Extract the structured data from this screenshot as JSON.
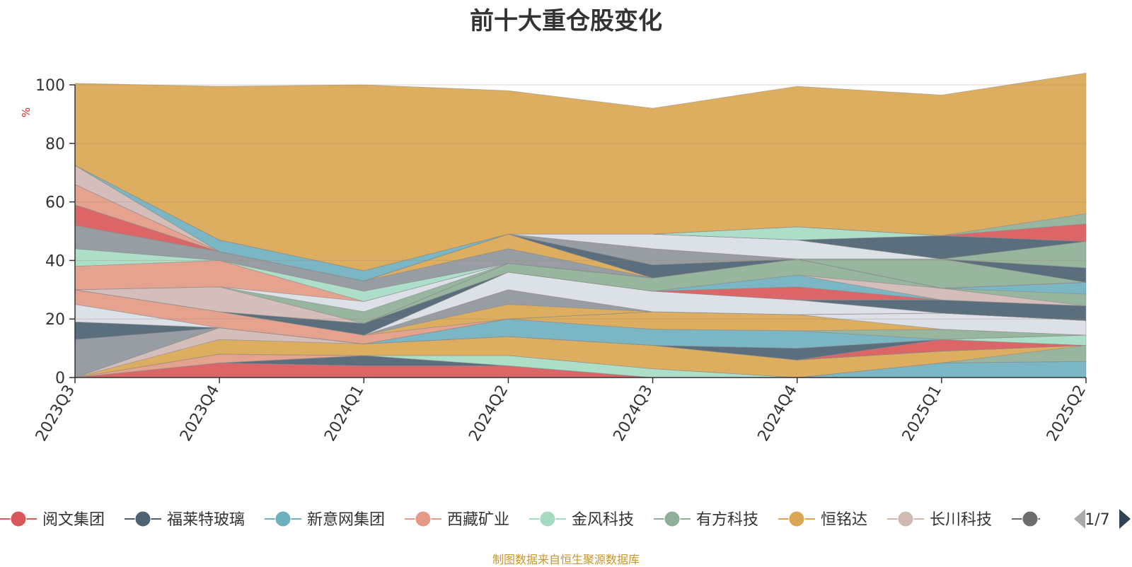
{
  "chart_data": {
    "type": "area",
    "stacked": true,
    "title": "前十大重仓股变化",
    "ylabel": "%",
    "ylim": [
      0,
      100
    ],
    "yticks": [
      0,
      20,
      40,
      60,
      80,
      100
    ],
    "categories": [
      "2023Q3",
      "2023Q4",
      "2024Q1",
      "2024Q2",
      "2024Q3",
      "2024Q4",
      "2025Q1",
      "2025Q2"
    ],
    "series": [
      {
        "name": "阅文集团",
        "color": "#d9595a",
        "values": [
          0,
          5,
          4,
          4,
          0,
          0,
          0,
          0
        ]
      },
      {
        "name": "福莱特玻璃",
        "color": "#4d6272",
        "values": [
          0,
          0,
          3.5,
          0,
          0,
          0,
          0,
          0
        ]
      },
      {
        "name": "新意网集团",
        "color": "#6fb0be",
        "values": [
          0,
          0,
          0,
          0,
          0,
          0,
          5,
          5.5
        ]
      },
      {
        "name": "西藏矿业",
        "color": "#e39a86",
        "values": [
          0,
          3,
          0,
          0,
          0,
          0,
          0,
          0
        ]
      },
      {
        "name": "金风科技",
        "color": "#a6dbc3",
        "values": [
          0,
          0,
          0,
          3.5,
          3,
          0,
          0,
          0
        ]
      },
      {
        "name": "有方科技",
        "color": "#8fb096",
        "values": [
          0,
          0,
          0,
          0,
          0,
          0,
          0,
          5.5
        ]
      },
      {
        "name": "恒铭达",
        "color": "#dba753",
        "values": [
          0,
          5,
          4,
          6.5,
          8,
          6,
          4,
          0
        ]
      },
      {
        "name": "长川科技",
        "color": "#d1b9b3",
        "values": [
          0,
          4,
          0,
          0,
          0,
          0,
          0,
          0
        ]
      },
      {
        "name": "",
        "color": "#8e959b",
        "values": [
          13,
          0,
          0,
          0,
          0,
          0,
          0,
          0
        ]
      },
      {
        "name": "",
        "color": "#d9595a",
        "values": [
          0,
          0,
          0,
          0,
          0,
          0,
          4,
          0
        ]
      },
      {
        "name": "",
        "color": "#4d6272",
        "values": [
          6,
          0,
          0,
          0,
          0,
          4,
          0,
          0
        ]
      },
      {
        "name": "",
        "color": "#a6dbc3",
        "values": [
          0,
          0,
          0,
          0,
          0,
          0,
          0,
          3.5
        ]
      },
      {
        "name": "",
        "color": "#6fb0be",
        "values": [
          0,
          0,
          0,
          6,
          5.5,
          6,
          0,
          0
        ]
      },
      {
        "name": "",
        "color": "#8fb096",
        "values": [
          0,
          0,
          0,
          0,
          0,
          0,
          3.5,
          0
        ]
      },
      {
        "name": "",
        "color": "#dba753",
        "values": [
          0,
          0,
          0,
          0,
          6,
          5.5,
          0,
          0
        ]
      },
      {
        "name": "",
        "color": "#d9dee6",
        "values": [
          6,
          0,
          0,
          0,
          0,
          0,
          5.5,
          5
        ]
      },
      {
        "name": "",
        "color": "#e39a86",
        "values": [
          5,
          5.5,
          3,
          0,
          0,
          0,
          0,
          0
        ]
      },
      {
        "name": "",
        "color": "#d1b9b3",
        "values": [
          0,
          0,
          0,
          0,
          0,
          0,
          0,
          0
        ]
      },
      {
        "name": "",
        "color": "#dba753",
        "values": [
          0,
          0,
          0,
          5,
          0,
          0,
          0,
          0
        ]
      },
      {
        "name": "",
        "color": "#8e959b",
        "values": [
          0,
          0,
          0,
          5,
          0,
          0,
          0,
          0
        ]
      },
      {
        "name": "",
        "color": "#d9dee6",
        "values": [
          0,
          0,
          0,
          6,
          7,
          5,
          0,
          0
        ]
      },
      {
        "name": "",
        "color": "#4d6272",
        "values": [
          0,
          0,
          4,
          0,
          0,
          0,
          4.5,
          5
        ]
      },
      {
        "name": "",
        "color": "#d9595a",
        "values": [
          0,
          0,
          0,
          0,
          0,
          4.5,
          0,
          0
        ]
      },
      {
        "name": "",
        "color": "#6fb0be",
        "values": [
          0,
          0,
          0,
          0,
          0,
          4,
          0,
          0
        ]
      },
      {
        "name": "",
        "color": "#d1b9b3",
        "values": [
          0,
          0,
          0,
          0,
          0,
          0,
          4,
          0
        ]
      },
      {
        "name": "",
        "color": "#8fb096",
        "values": [
          0,
          0,
          0,
          3,
          4.5,
          5.5,
          0,
          4
        ]
      },
      {
        "name": "",
        "color": "#6fb0be",
        "values": [
          0,
          0,
          0,
          0,
          0,
          0,
          0,
          4
        ]
      },
      {
        "name": "",
        "color": "#d1b9b3",
        "values": [
          0,
          8.5,
          0,
          0,
          0,
          0,
          0,
          0
        ]
      },
      {
        "name": "",
        "color": "#8fb096",
        "values": [
          0,
          0,
          4,
          0,
          0,
          0,
          0,
          0
        ]
      },
      {
        "name": "",
        "color": "#d9dee6",
        "values": [
          0,
          0,
          3.5,
          0,
          0,
          0,
          0,
          0
        ]
      },
      {
        "name": "",
        "color": "#e39a86",
        "values": [
          8,
          9,
          0,
          0,
          0,
          0,
          0,
          0
        ]
      },
      {
        "name": "",
        "color": "#a6dbc3",
        "values": [
          6,
          0,
          3.5,
          0,
          0,
          0,
          0,
          0
        ]
      },
      {
        "name": "",
        "color": "#8e959b",
        "values": [
          8,
          3,
          3.5,
          5,
          0,
          0,
          0,
          0
        ]
      },
      {
        "name": "",
        "color": "#d9595a",
        "values": [
          7,
          0,
          0,
          0,
          0,
          0,
          0,
          0
        ]
      },
      {
        "name": "",
        "color": "#dba753",
        "values": [
          0,
          0,
          0,
          5,
          0,
          0,
          0,
          0
        ]
      },
      {
        "name": "",
        "color": "#8fb096",
        "values": [
          0,
          0,
          0,
          0,
          0,
          0,
          10,
          0
        ]
      },
      {
        "name": "",
        "color": "#4d6272",
        "values": [
          0,
          0,
          0,
          0,
          4.5,
          0,
          0,
          5
        ]
      },
      {
        "name": "",
        "color": "#e39a86",
        "values": [
          7,
          0,
          0,
          0,
          0,
          0,
          0,
          0
        ]
      },
      {
        "name": "",
        "color": "#8e959b",
        "values": [
          0,
          0,
          0,
          0,
          5.5,
          0,
          0,
          0
        ]
      },
      {
        "name": "",
        "color": "#d9dee6",
        "values": [
          0,
          0,
          0,
          0,
          5,
          6.5,
          0,
          0
        ]
      },
      {
        "name": "",
        "color": "#d1b9b3",
        "values": [
          6.5,
          0,
          0,
          0,
          0,
          0,
          0,
          0
        ]
      },
      {
        "name": "",
        "color": "#8fb096",
        "values": [
          0,
          0,
          0,
          0,
          0,
          0,
          0,
          9
        ]
      },
      {
        "name": "",
        "color": "#6fb0be",
        "values": [
          0,
          4,
          3.5,
          0,
          0,
          0,
          0,
          0
        ]
      },
      {
        "name": "",
        "color": "#4d6272",
        "values": [
          0,
          0,
          0,
          0,
          0,
          0,
          8,
          0
        ]
      },
      {
        "name": "",
        "color": "#a6dbc3",
        "values": [
          0,
          0,
          0,
          0,
          0,
          4.5,
          0,
          0
        ]
      },
      {
        "name": "",
        "color": "#d9595a",
        "values": [
          0,
          0,
          0,
          0,
          0,
          0,
          0,
          6
        ]
      },
      {
        "name": "",
        "color": "#8fb096",
        "values": [
          0,
          0,
          0,
          0,
          0,
          0,
          0,
          3.5
        ]
      },
      {
        "name": "",
        "color": "#dba753",
        "values": [
          28,
          52.5,
          63.5,
          49,
          43,
          48,
          48,
          48
        ]
      }
    ],
    "legend_position": "bottom",
    "legend_page": "1/7"
  },
  "footer": "制图数据来自恒生聚源数据库"
}
